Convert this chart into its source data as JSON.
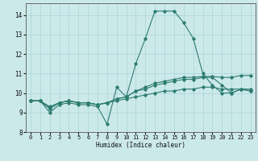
{
  "title": "",
  "xlabel": "Humidex (Indice chaleur)",
  "xlim": [
    -0.5,
    23.5
  ],
  "ylim": [
    8,
    14.6
  ],
  "yticks": [
    8,
    9,
    10,
    11,
    12,
    13,
    14
  ],
  "xticks": [
    0,
    1,
    2,
    3,
    4,
    5,
    6,
    7,
    8,
    9,
    10,
    11,
    12,
    13,
    14,
    15,
    16,
    17,
    18,
    19,
    20,
    21,
    22,
    23
  ],
  "bg_color": "#cce9ea",
  "grid_color": "#a8d4d6",
  "line_color": "#2d7d6e",
  "lines": [
    [
      9.6,
      9.6,
      9.0,
      9.4,
      9.5,
      9.4,
      9.4,
      9.3,
      8.4,
      10.3,
      9.8,
      11.5,
      12.8,
      14.2,
      14.2,
      14.2,
      13.6,
      12.8,
      11.0,
      10.4,
      10.0,
      10.0,
      10.2,
      10.1
    ],
    [
      9.6,
      9.6,
      9.2,
      9.5,
      9.6,
      9.5,
      9.5,
      9.4,
      9.5,
      9.7,
      9.8,
      10.1,
      10.2,
      10.4,
      10.5,
      10.6,
      10.7,
      10.7,
      10.8,
      10.8,
      10.4,
      10.0,
      10.2,
      10.1
    ],
    [
      9.6,
      9.6,
      9.2,
      9.5,
      9.6,
      9.5,
      9.5,
      9.4,
      9.5,
      9.7,
      9.8,
      10.1,
      10.3,
      10.5,
      10.6,
      10.7,
      10.8,
      10.8,
      10.85,
      10.85,
      10.8,
      10.8,
      10.9,
      10.9
    ],
    [
      9.6,
      9.6,
      9.3,
      9.5,
      9.6,
      9.5,
      9.5,
      9.4,
      9.5,
      9.6,
      9.7,
      9.8,
      9.9,
      10.0,
      10.1,
      10.1,
      10.2,
      10.2,
      10.3,
      10.3,
      10.2,
      10.2,
      10.2,
      10.2
    ]
  ]
}
